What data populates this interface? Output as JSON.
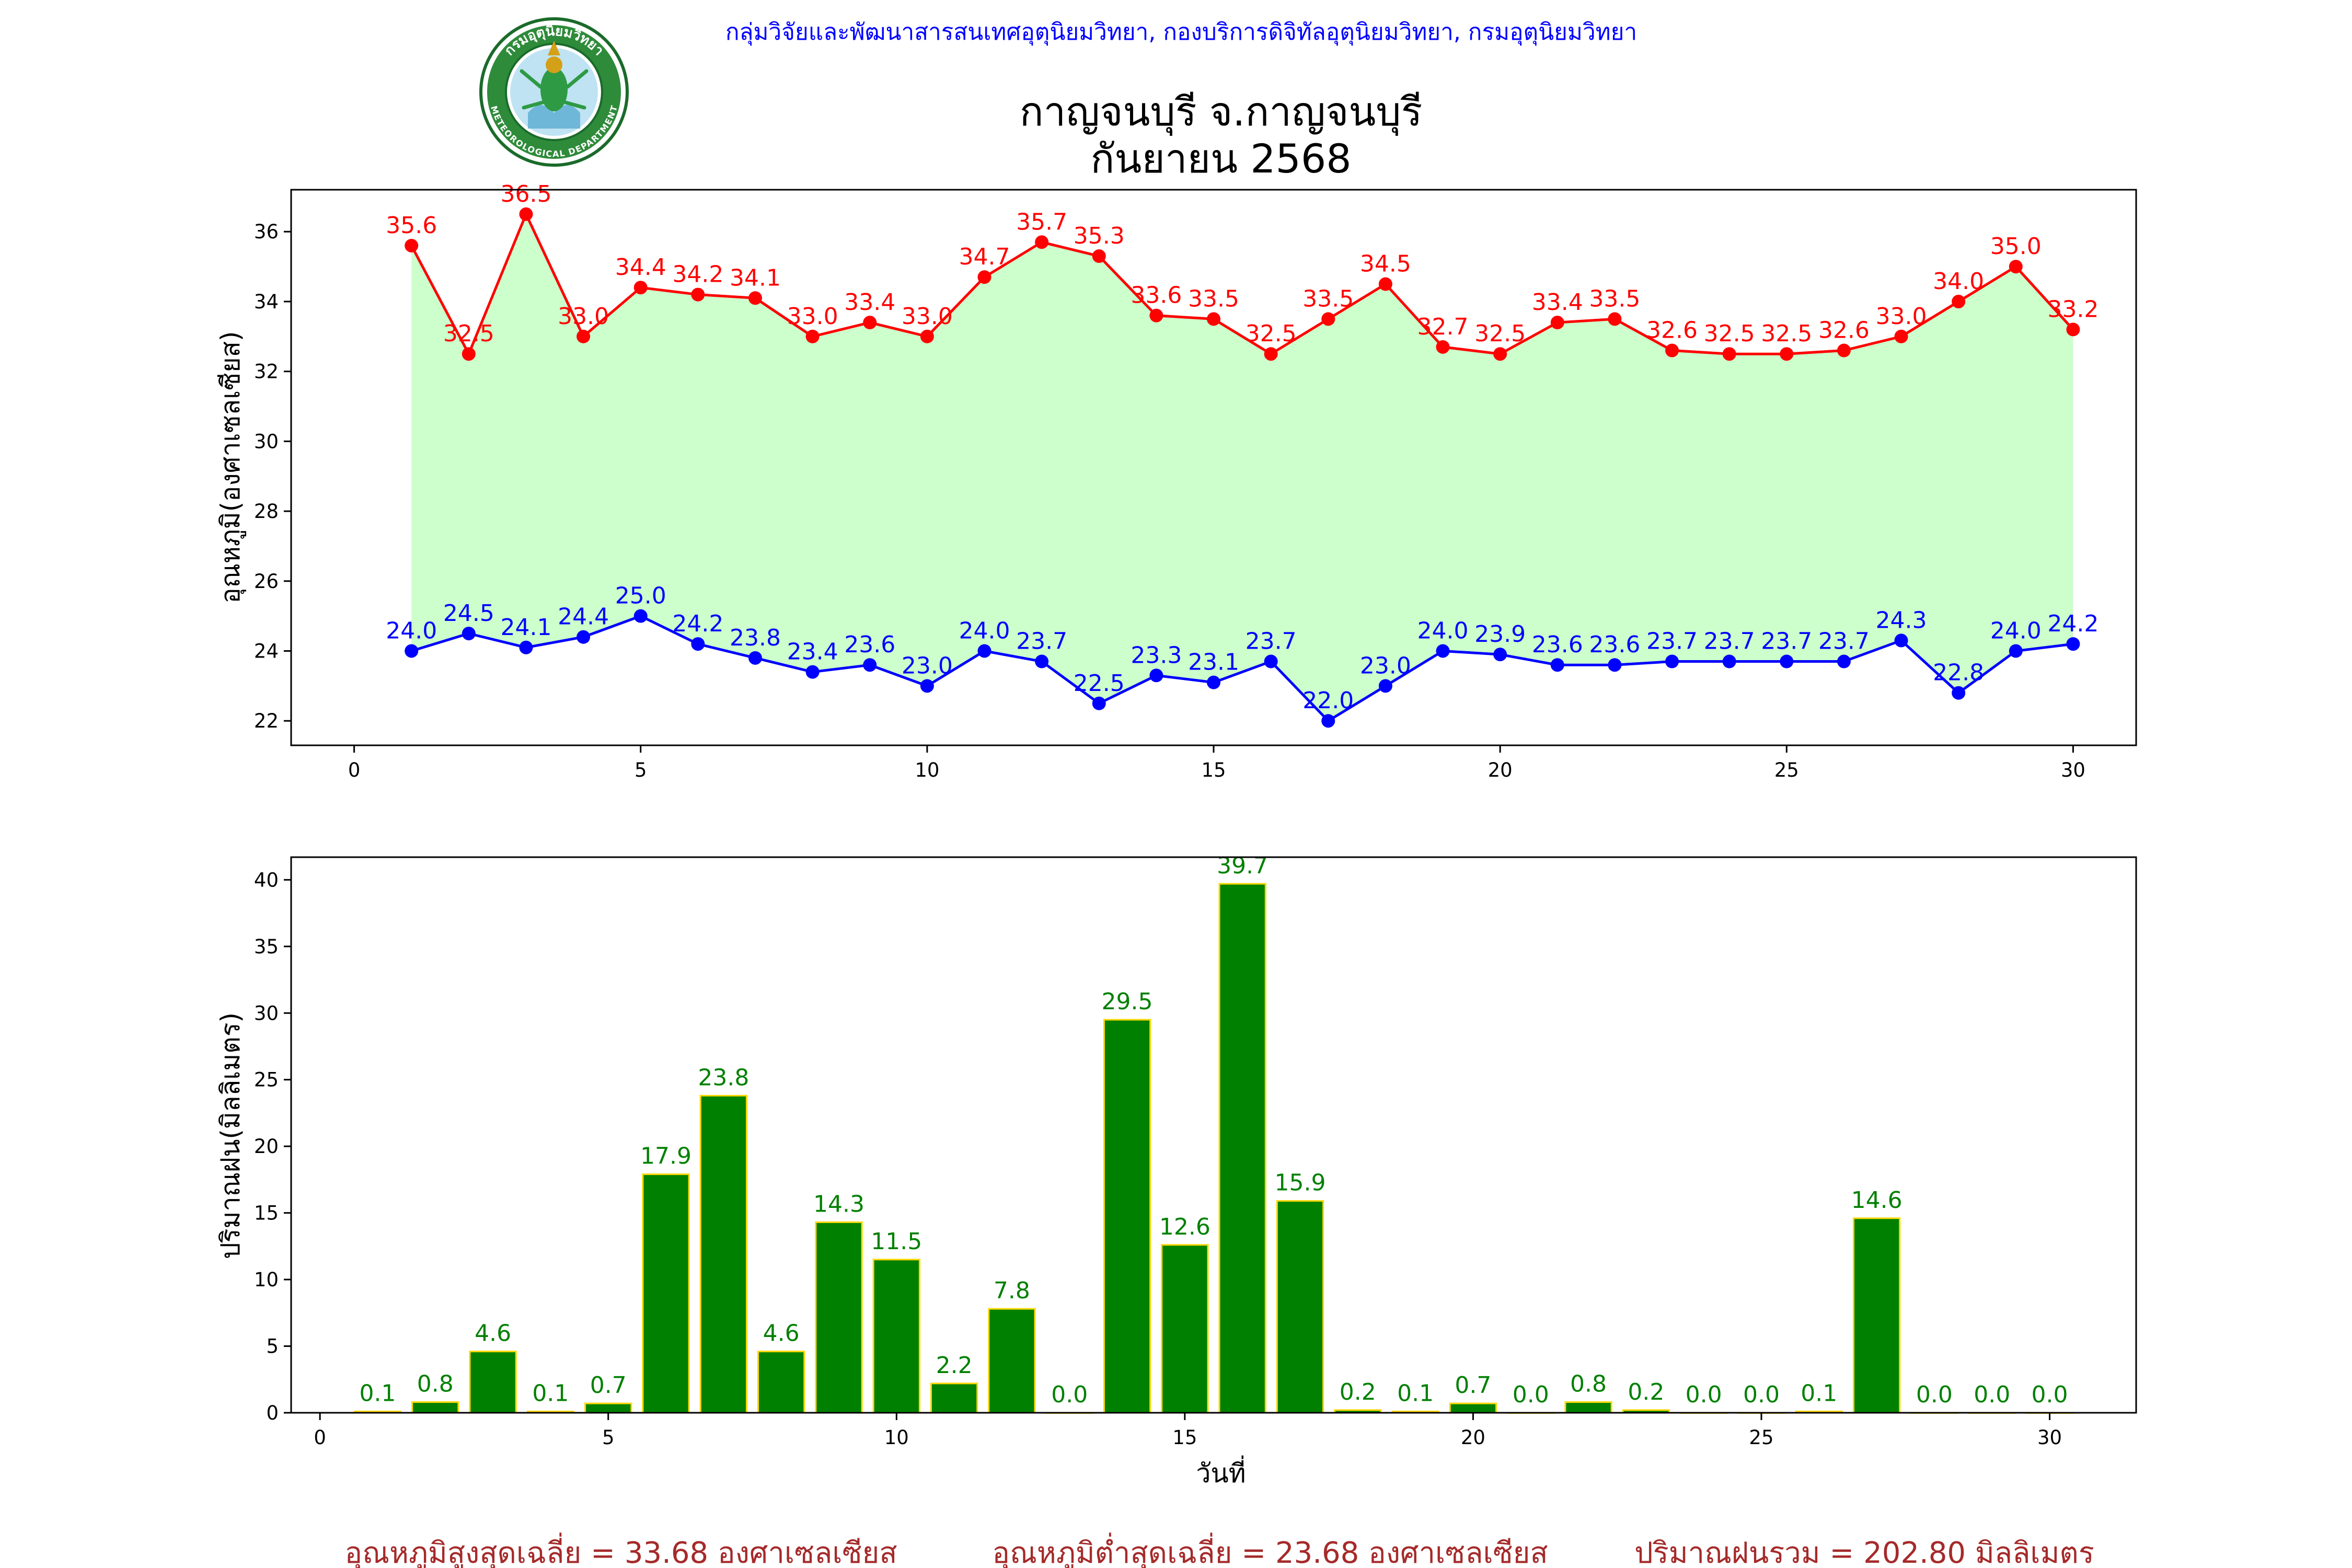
{
  "header": {
    "credit": "กลุ่มวิจัยและพัฒนาสารสนเทศอุตุนิยมวิทยา, กองบริการดิจิทัลอุตุนิยมวิทยา, กรมอุตุนิยมวิทยา",
    "title_line1": "กาญจนบุรี จ.กาญจนบุรี",
    "title_line2": "กันยายน 2568"
  },
  "logo": {
    "text_top": "กรมอุตุนิยมวิทยา",
    "text_bottom": "METEOROLOGICAL DEPARTMENT"
  },
  "chart_data": [
    {
      "type": "line",
      "ylabel": "อุณหภูมิ(องศาเซลเซียส)",
      "xlabel": "",
      "xlim": [
        -1.1,
        31.1
      ],
      "ylim": [
        21.3,
        37.2
      ],
      "xticks": [
        0,
        5,
        10,
        15,
        20,
        25,
        30
      ],
      "yticks": [
        22,
        24,
        26,
        28,
        30,
        32,
        34,
        36
      ],
      "x": [
        1,
        2,
        3,
        4,
        5,
        6,
        7,
        8,
        9,
        10,
        11,
        12,
        13,
        14,
        15,
        16,
        17,
        18,
        19,
        20,
        21,
        22,
        23,
        24,
        25,
        26,
        27,
        28,
        29,
        30
      ],
      "series": [
        {
          "color": "#ff0000",
          "values": [
            35.6,
            32.5,
            36.5,
            33.0,
            34.4,
            34.2,
            34.1,
            33.0,
            33.4,
            33.0,
            34.7,
            35.7,
            35.3,
            33.6,
            33.5,
            32.5,
            33.5,
            34.5,
            32.7,
            32.5,
            33.4,
            33.5,
            32.6,
            32.5,
            32.5,
            32.6,
            33.0,
            34.0,
            35.0,
            33.2
          ]
        },
        {
          "color": "#0000ff",
          "values": [
            24.0,
            24.5,
            24.1,
            24.4,
            25.0,
            24.2,
            23.8,
            23.4,
            23.6,
            23.0,
            24.0,
            23.7,
            22.5,
            23.3,
            23.1,
            23.7,
            22.0,
            23.0,
            24.0,
            23.9,
            23.6,
            23.6,
            23.7,
            23.7,
            23.7,
            23.7,
            24.3,
            22.8,
            24.0,
            24.2
          ]
        }
      ],
      "fill_between_color": "#ccffcc"
    },
    {
      "type": "bar",
      "ylabel": "ปริมาณฝน(มิลลิเมตร)",
      "xlabel": "วันที่",
      "xlim": [
        -0.5,
        31.5
      ],
      "ylim": [
        0,
        41.7
      ],
      "xticks": [
        0,
        5,
        10,
        15,
        20,
        25,
        30
      ],
      "yticks": [
        0,
        5,
        10,
        15,
        20,
        25,
        30,
        35,
        40
      ],
      "x": [
        1,
        2,
        3,
        4,
        5,
        6,
        7,
        8,
        9,
        10,
        11,
        12,
        13,
        14,
        15,
        16,
        17,
        18,
        19,
        20,
        21,
        22,
        23,
        24,
        25,
        26,
        27,
        28,
        29,
        30
      ],
      "values": [
        0.1,
        0.8,
        4.6,
        0.1,
        0.7,
        17.9,
        23.8,
        4.6,
        14.3,
        11.5,
        2.2,
        7.8,
        0.0,
        29.5,
        12.6,
        39.7,
        15.9,
        0.2,
        0.1,
        0.7,
        0.0,
        0.8,
        0.2,
        0.0,
        0.0,
        0.1,
        14.6,
        0.0,
        0.0,
        0.0
      ],
      "bar_color": "#008000",
      "edge_color": "#ffd700",
      "label_color": "#008000"
    }
  ],
  "footer": {
    "avg_max": "อุณหภูมิสูงสุดเฉลี่ย = 33.68 องศาเซลเซียส",
    "avg_min": "อุณหภูมิต่ำสุดเฉลี่ย = 23.68 องศาเซลเซียส",
    "total_rain": "ปริมาณฝนรวม = 202.80 มิลลิเมตร"
  }
}
